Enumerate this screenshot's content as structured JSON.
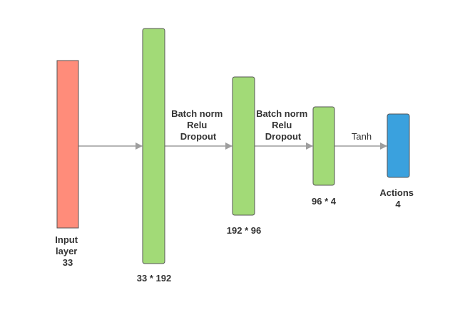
{
  "colors": {
    "input": "#FF8C7A",
    "hidden": "#A2DA77",
    "output": "#3AA1DE",
    "arrow": "#9E9E9E",
    "text": "#333333"
  },
  "layers": [
    {
      "id": "input",
      "lines": [
        "Input",
        "layer",
        "33"
      ]
    },
    {
      "id": "hidden1",
      "lines": [
        "33 * 192"
      ]
    },
    {
      "id": "hidden2",
      "lines": [
        "192 * 96"
      ]
    },
    {
      "id": "hidden3",
      "lines": [
        "96 * 4"
      ]
    },
    {
      "id": "output",
      "lines": [
        "Actions",
        "4"
      ]
    }
  ],
  "connections": [
    {
      "from": "input",
      "to": "hidden1",
      "lines": []
    },
    {
      "from": "hidden1",
      "to": "hidden2",
      "lines": [
        "Batch norm",
        "Relu",
        "Dropout"
      ]
    },
    {
      "from": "hidden2",
      "to": "hidden3",
      "lines": [
        "Batch norm",
        "Relu",
        "Dropout"
      ]
    },
    {
      "from": "hidden3",
      "to": "output",
      "lines": [
        "Tanh"
      ]
    }
  ]
}
